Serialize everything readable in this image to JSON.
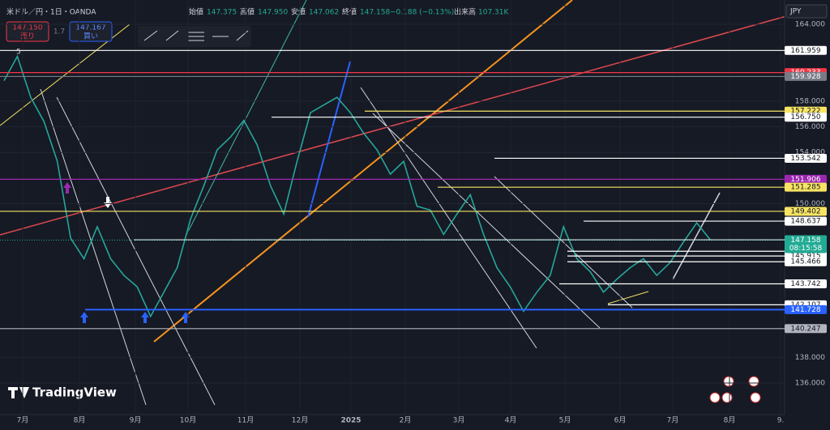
{
  "header": {
    "symbol": "米ドル／円・1日・OANDA",
    "open_label": "始値",
    "open": "147.375",
    "high_label": "高値",
    "high": "147.950",
    "low_label": "安値",
    "low": "147.062",
    "close_label": "終値",
    "close": "147.158",
    "change": "−0.188 (−0.13%)",
    "volume_label": "出来高",
    "volume": "107.31K"
  },
  "trade": {
    "sell_price": "147.150",
    "sell_label": "売り",
    "spread": "1.7",
    "buy_price": "147.167",
    "buy_label": "買い"
  },
  "indicator_count": "5",
  "currency": "JPY",
  "brand": "TradingView",
  "price_axis": {
    "ylim": [
      136,
      164
    ],
    "yticks": [
      {
        "value": 164,
        "label": "164.000"
      },
      {
        "value": 158,
        "label": "158.000"
      },
      {
        "value": 156,
        "label": "156.000"
      },
      {
        "value": 154,
        "label": "154.000"
      },
      {
        "value": 150,
        "label": "150.000"
      },
      {
        "value": 138,
        "label": "138.000"
      },
      {
        "value": 136,
        "label": "136.000"
      }
    ]
  },
  "time_axis": [
    "7月",
    "8月",
    "9月",
    "10月",
    "11月",
    "12月",
    "2025",
    "2月",
    "3月",
    "4月",
    "5月",
    "6月",
    "7月",
    "8月",
    "9."
  ],
  "levels": [
    {
      "value": 161.959,
      "label": "161.959",
      "color": "#ffffff"
    },
    {
      "value": 160.233,
      "label": "160.233",
      "color": "#f23645"
    },
    {
      "value": 159.928,
      "label": "159.928",
      "color": "#787b86"
    },
    {
      "value": 157.222,
      "label": "157.222",
      "color": "#f7e463"
    },
    {
      "value": 156.75,
      "label": "156.750",
      "color": "#ffffff"
    },
    {
      "value": 153.542,
      "label": "153.542",
      "color": "#ffffff"
    },
    {
      "value": 151.906,
      "label": "151.906",
      "color": "#9c27b0"
    },
    {
      "value": 151.285,
      "label": "151.285",
      "color": "#f7e463"
    },
    {
      "value": 149.402,
      "label": "149.402",
      "color": "#f7e463"
    },
    {
      "value": 148.637,
      "label": "148.637",
      "color": "#ffffff"
    },
    {
      "value": 147.175,
      "label": "147.175",
      "color": "#ffffff"
    },
    {
      "value": 146.286,
      "label": "146.286",
      "color": "#ffffff"
    },
    {
      "value": 145.915,
      "label": "145.915",
      "color": "#ffffff"
    },
    {
      "value": 145.466,
      "label": "145.466",
      "color": "#ffffff"
    },
    {
      "value": 143.742,
      "label": "143.742",
      "color": "#ffffff"
    },
    {
      "value": 142.107,
      "label": "142.107",
      "color": "#ffffff"
    },
    {
      "value": 141.728,
      "label": "141.728",
      "color": "#2962ff"
    },
    {
      "value": 140.247,
      "label": "140.247",
      "color": "#b2b5be"
    }
  ],
  "current": {
    "value": 147.158,
    "label": "147.158",
    "countdown": "08:15:58",
    "color": "#22ab94"
  },
  "price_path": [
    159.6,
    161.5,
    158.3,
    156.4,
    153.3,
    147.3,
    145.7,
    148.2,
    145.7,
    144.4,
    143.5,
    141.2,
    143.1,
    145,
    148.8,
    151.4,
    154.2,
    155.2,
    156.5,
    154.6,
    151.4,
    149.2,
    153.3,
    157.1,
    157.7,
    158.3,
    157.1,
    155.5,
    154.2,
    152.3,
    153.3,
    149.8,
    149.5,
    147.6,
    149.2,
    150.7,
    147.6,
    145,
    143.5,
    141.6,
    143.1,
    144.4,
    148.2,
    145.7,
    144.7,
    143.1,
    144.1,
    145,
    145.7,
    144.4,
    145.4,
    147,
    148.5,
    147.2
  ]
}
